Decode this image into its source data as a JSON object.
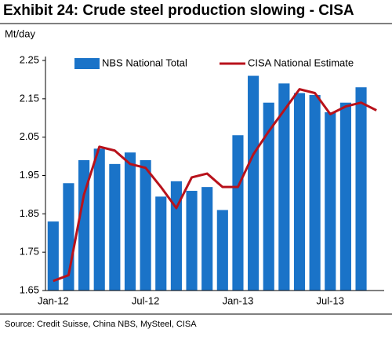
{
  "chart_data": {
    "type": "bar-line",
    "title": "Exhibit 24: Crude steel production slowing - CISA",
    "y_label": "Mt/day",
    "source": "Source: Credit Suisse, China NBS, MySteel, CISA",
    "categories": [
      "Jan-12",
      null,
      null,
      null,
      null,
      null,
      "Jul-12",
      null,
      null,
      null,
      null,
      null,
      "Jan-13",
      null,
      null,
      null,
      null,
      null,
      "Jul-13",
      null,
      null,
      null
    ],
    "series": [
      {
        "name": "NBS National Total",
        "type": "bar",
        "color": "#1a73c8",
        "values": [
          1.83,
          1.93,
          1.99,
          2.02,
          1.98,
          2.01,
          1.99,
          1.895,
          1.935,
          1.91,
          1.92,
          1.86,
          2.055,
          2.21,
          2.14,
          2.19,
          2.165,
          2.16,
          2.115,
          2.14,
          2.18,
          null
        ]
      },
      {
        "name": "CISA National Estimate",
        "type": "line",
        "color": "#b8121b",
        "values": [
          1.675,
          1.69,
          1.9,
          2.025,
          2.015,
          1.98,
          1.97,
          1.92,
          1.865,
          1.945,
          1.955,
          1.92,
          1.92,
          2.005,
          2.065,
          2.12,
          2.175,
          2.165,
          2.11,
          2.13,
          2.14,
          2.12
        ]
      }
    ],
    "ylim": [
      1.65,
      2.25
    ],
    "yticks": [
      1.65,
      1.75,
      1.85,
      1.95,
      2.05,
      2.15,
      2.25
    ],
    "grid": false
  }
}
